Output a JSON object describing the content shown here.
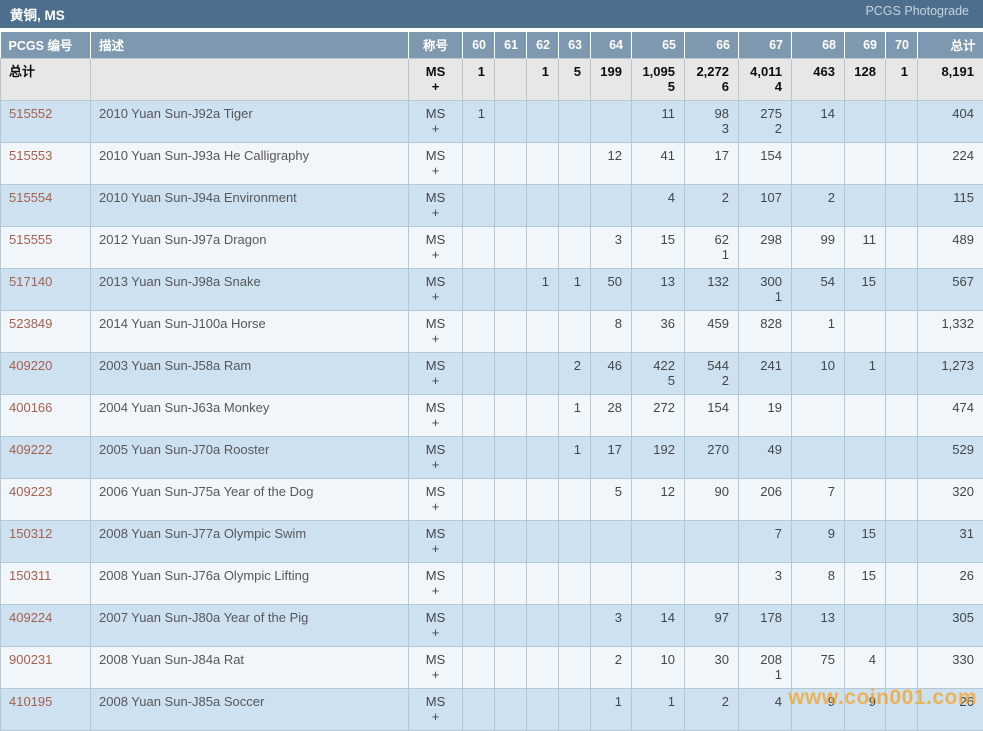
{
  "header": {
    "title": "黄铜, MS",
    "photograde_label": "PCGS Photograde"
  },
  "table": {
    "columns": [
      "PCGS 编号",
      "描述",
      "称号",
      "60",
      "61",
      "62",
      "63",
      "64",
      "65",
      "66",
      "67",
      "68",
      "69",
      "70",
      "总计"
    ],
    "designation": {
      "line1": "MS",
      "line2": "+"
    },
    "totals_row": {
      "label": "总计",
      "description": "",
      "grades": [
        [
          "1"
        ],
        [],
        [
          "1"
        ],
        [
          "5"
        ],
        [
          "199"
        ],
        [
          "1,095",
          "5"
        ],
        [
          "2,272",
          "6"
        ],
        [
          "4,011",
          "4"
        ],
        [
          "463"
        ],
        [
          "128"
        ],
        [
          "1"
        ]
      ],
      "total": "8,191"
    },
    "rows": [
      {
        "pcgs_no": "515552",
        "description": "2010 Yuan Sun-J92a Tiger",
        "grades": [
          [
            "1"
          ],
          [],
          [],
          [],
          [],
          [
            "11"
          ],
          [
            "98",
            "3"
          ],
          [
            "275",
            "2"
          ],
          [
            "14"
          ],
          [],
          []
        ],
        "total": "404"
      },
      {
        "pcgs_no": "515553",
        "description": "2010 Yuan Sun-J93a He Calligraphy",
        "grades": [
          [],
          [],
          [],
          [],
          [
            "12"
          ],
          [
            "41"
          ],
          [
            "17"
          ],
          [
            "154"
          ],
          [],
          [],
          []
        ],
        "total": "224"
      },
      {
        "pcgs_no": "515554",
        "description": "2010 Yuan Sun-J94a Environment",
        "grades": [
          [],
          [],
          [],
          [],
          [],
          [
            "4"
          ],
          [
            "2"
          ],
          [
            "107"
          ],
          [
            "2"
          ],
          [],
          []
        ],
        "total": "115"
      },
      {
        "pcgs_no": "515555",
        "description": "2012 Yuan Sun-J97a Dragon",
        "grades": [
          [],
          [],
          [],
          [],
          [
            "3"
          ],
          [
            "15"
          ],
          [
            "62",
            "1"
          ],
          [
            "298"
          ],
          [
            "99"
          ],
          [
            "11"
          ],
          []
        ],
        "total": "489"
      },
      {
        "pcgs_no": "517140",
        "description": "2013 Yuan Sun-J98a Snake",
        "grades": [
          [],
          [],
          [
            "1"
          ],
          [
            "1"
          ],
          [
            "50"
          ],
          [
            "13"
          ],
          [
            "132"
          ],
          [
            "300",
            "1"
          ],
          [
            "54"
          ],
          [
            "15"
          ],
          []
        ],
        "total": "567"
      },
      {
        "pcgs_no": "523849",
        "description": "2014 Yuan Sun-J100a Horse",
        "grades": [
          [],
          [],
          [],
          [],
          [
            "8"
          ],
          [
            "36"
          ],
          [
            "459"
          ],
          [
            "828"
          ],
          [
            "1"
          ],
          [],
          []
        ],
        "total": "1,332"
      },
      {
        "pcgs_no": "409220",
        "description": "2003 Yuan Sun-J58a Ram",
        "grades": [
          [],
          [],
          [],
          [
            "2"
          ],
          [
            "46"
          ],
          [
            "422",
            "5"
          ],
          [
            "544",
            "2"
          ],
          [
            "241"
          ],
          [
            "10"
          ],
          [
            "1"
          ],
          []
        ],
        "total": "1,273"
      },
      {
        "pcgs_no": "400166",
        "description": "2004 Yuan Sun-J63a Monkey",
        "grades": [
          [],
          [],
          [],
          [
            "1"
          ],
          [
            "28"
          ],
          [
            "272"
          ],
          [
            "154"
          ],
          [
            "19"
          ],
          [],
          [],
          []
        ],
        "total": "474"
      },
      {
        "pcgs_no": "409222",
        "description": "2005 Yuan Sun-J70a Rooster",
        "grades": [
          [],
          [],
          [],
          [
            "1"
          ],
          [
            "17"
          ],
          [
            "192"
          ],
          [
            "270"
          ],
          [
            "49"
          ],
          [],
          [],
          []
        ],
        "total": "529"
      },
      {
        "pcgs_no": "409223",
        "description": "2006 Yuan Sun-J75a Year of the Dog",
        "grades": [
          [],
          [],
          [],
          [],
          [
            "5"
          ],
          [
            "12"
          ],
          [
            "90"
          ],
          [
            "206"
          ],
          [
            "7"
          ],
          [],
          []
        ],
        "total": "320"
      },
      {
        "pcgs_no": "150312",
        "description": "2008 Yuan Sun-J77a Olympic Swim",
        "grades": [
          [],
          [],
          [],
          [],
          [],
          [],
          [],
          [
            "7"
          ],
          [
            "9"
          ],
          [
            "15"
          ],
          []
        ],
        "total": "31"
      },
      {
        "pcgs_no": "150311",
        "description": "2008 Yuan Sun-J76a Olympic Lifting",
        "grades": [
          [],
          [],
          [],
          [],
          [],
          [],
          [],
          [
            "3"
          ],
          [
            "8"
          ],
          [
            "15"
          ],
          []
        ],
        "total": "26"
      },
      {
        "pcgs_no": "409224",
        "description": "2007 Yuan Sun-J80a Year of the Pig",
        "grades": [
          [],
          [],
          [],
          [],
          [
            "3"
          ],
          [
            "14"
          ],
          [
            "97"
          ],
          [
            "178"
          ],
          [
            "13"
          ],
          [],
          []
        ],
        "total": "305"
      },
      {
        "pcgs_no": "900231",
        "description": "2008 Yuan Sun-J84a Rat",
        "grades": [
          [],
          [],
          [],
          [],
          [
            "2"
          ],
          [
            "10"
          ],
          [
            "30"
          ],
          [
            "208",
            "1"
          ],
          [
            "75"
          ],
          [
            "4"
          ],
          []
        ],
        "total": "330"
      },
      {
        "pcgs_no": "410195",
        "description": "2008 Yuan Sun-J85a Soccer",
        "grades": [
          [],
          [],
          [],
          [],
          [
            "1"
          ],
          [
            "1"
          ],
          [
            "2"
          ],
          [
            "4"
          ],
          [
            "9"
          ],
          [
            "9"
          ],
          []
        ],
        "total": "26"
      }
    ]
  },
  "watermark": "www.coin001.com",
  "colors": {
    "title_bar": "#4e6e8d",
    "header_row": "#7e98af",
    "totals_bg": "#e7e7e7",
    "row_blue": "#cde1f1",
    "row_light": "#f1f6fa",
    "link": "#a7604d",
    "watermark": "#f7a01e"
  }
}
